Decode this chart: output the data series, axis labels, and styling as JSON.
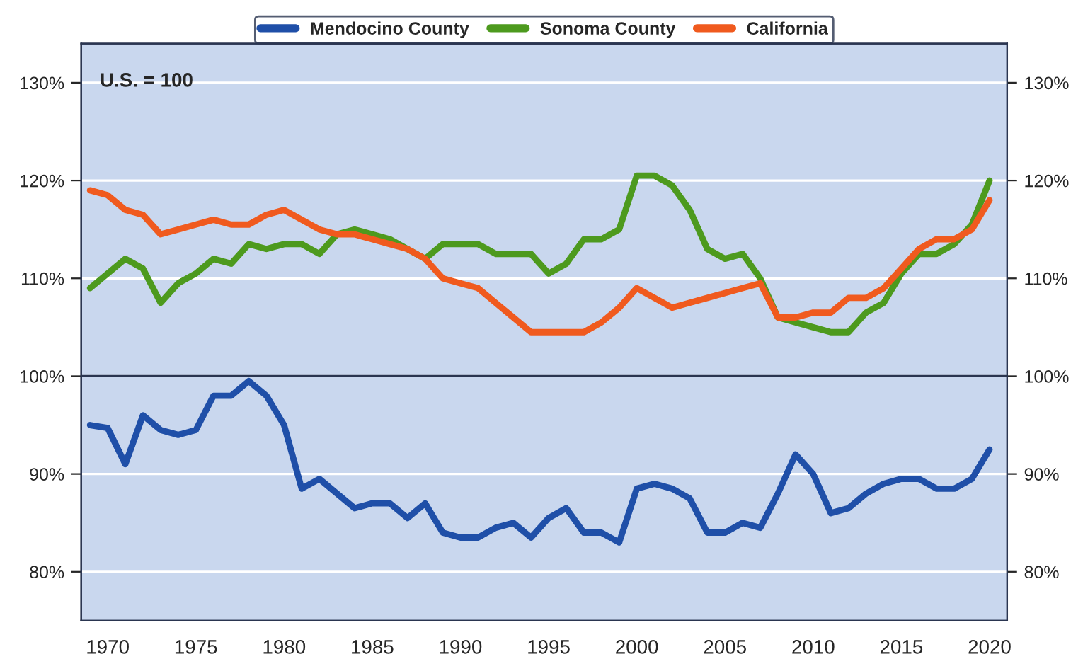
{
  "chart_data": {
    "type": "line",
    "x": [
      1969,
      1970,
      1971,
      1972,
      1973,
      1974,
      1975,
      1976,
      1977,
      1978,
      1979,
      1980,
      1981,
      1982,
      1983,
      1984,
      1985,
      1986,
      1987,
      1988,
      1989,
      1990,
      1991,
      1992,
      1993,
      1994,
      1995,
      1996,
      1997,
      1998,
      1999,
      2000,
      2001,
      2002,
      2003,
      2004,
      2005,
      2006,
      2007,
      2008,
      2009,
      2010,
      2011,
      2012,
      2013,
      2014,
      2015,
      2016,
      2017,
      2018,
      2019,
      2020
    ],
    "series": [
      {
        "name": "Mendocino County",
        "color": "#1f4fa8",
        "values": [
          95,
          94.7,
          91,
          96,
          94.5,
          94,
          94.5,
          98,
          98,
          99.5,
          98,
          95,
          88.5,
          89.5,
          88,
          86.5,
          87,
          87,
          85.5,
          87,
          84,
          83.5,
          83.5,
          84.5,
          85,
          83.5,
          85.5,
          86.5,
          84,
          84,
          83,
          88.5,
          89,
          88.5,
          87.5,
          84,
          84,
          85,
          84.5,
          88,
          92,
          90,
          86,
          86.5,
          88,
          89,
          89.5,
          89.5,
          88.5,
          88.5,
          89.5,
          92.5
        ]
      },
      {
        "name": "Sonoma County",
        "color": "#4d9a1e",
        "values": [
          109,
          110.5,
          112,
          111,
          107.5,
          109.5,
          110.5,
          112,
          111.5,
          113.5,
          113,
          113.5,
          113.5,
          112.5,
          114.5,
          115,
          114.5,
          114,
          113,
          112,
          113.5,
          113.5,
          113.5,
          112.5,
          112.5,
          112.5,
          110.5,
          111.5,
          114,
          114,
          115,
          120.5,
          120.5,
          119.5,
          117,
          113,
          112,
          112.5,
          110,
          106,
          105.5,
          105,
          104.5,
          104.5,
          106.5,
          107.5,
          110.5,
          112.5,
          112.5,
          113.5,
          115.5,
          120
        ]
      },
      {
        "name": "California",
        "color": "#f05a1e",
        "values": [
          119,
          118.5,
          117,
          116.5,
          114.5,
          115,
          115.5,
          116,
          115.5,
          115.5,
          116.5,
          117,
          116,
          115,
          114.5,
          114.5,
          114,
          113.5,
          113,
          112,
          110,
          109.5,
          109,
          107.5,
          106,
          104.5,
          104.5,
          104.5,
          104.5,
          105.5,
          107,
          109,
          108,
          107,
          107.5,
          108,
          108.5,
          109,
          109.5,
          106,
          106,
          106.5,
          106.5,
          108,
          108,
          109,
          111,
          113,
          114,
          114,
          115,
          118
        ]
      }
    ],
    "xlim": [
      1968.5,
      2021
    ],
    "xticks": [
      1970,
      1975,
      1980,
      1985,
      1990,
      1995,
      2000,
      2005,
      2010,
      2015,
      2020
    ],
    "ylim": [
      75,
      134
    ],
    "yticks": [
      {
        "value": 80,
        "label": "80%"
      },
      {
        "value": 90,
        "label": "90%"
      },
      {
        "value": 100,
        "label": "100%"
      },
      {
        "value": 110,
        "label": "110%"
      },
      {
        "value": 120,
        "label": "120%"
      },
      {
        "value": 130,
        "label": "130%"
      }
    ],
    "y2lim": [
      75,
      134
    ],
    "y2ticks": [
      {
        "value": 80,
        "label": "80%"
      },
      {
        "value": 90,
        "label": "90%"
      },
      {
        "value": 100,
        "label": "100%"
      },
      {
        "value": 110,
        "label": "110%"
      },
      {
        "value": 120,
        "label": "120%"
      },
      {
        "value": 130,
        "label": "130%"
      }
    ],
    "ref_lines": [
      {
        "axis": "y",
        "value": 100,
        "label": null,
        "color": "#2a3550"
      }
    ],
    "annotations": [
      "U.S. = 100"
    ],
    "grid": "y",
    "legend": "top",
    "line_style": "solid",
    "marker": "none"
  }
}
